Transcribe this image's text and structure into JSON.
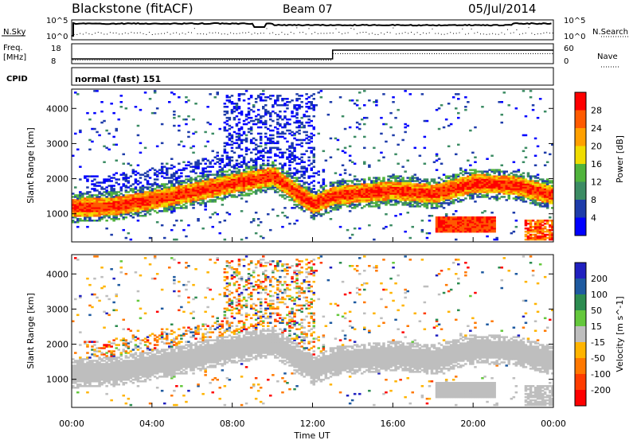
{
  "header": {
    "station": "Blackstone (fitACF)",
    "beam": "Beam 07",
    "date": "05/Jul/2014"
  },
  "panels": {
    "nsky_label": "N.Sky",
    "nsky_ticks": [
      "10^5",
      "10^0"
    ],
    "nsearch_label": "N.Search",
    "nsearch_ticks": [
      "10^5",
      "10^0"
    ],
    "freq_label_1": "Freq.",
    "freq_label_2": "[MHz]",
    "freq_ticks": [
      "18",
      "8"
    ],
    "nave_label": "Nave",
    "nave_ticks": [
      "60",
      "0"
    ],
    "cpid_label": "CPID",
    "cpid_value": "normal (fast) 151"
  },
  "colors": {
    "power_scale": [
      "#0000ff",
      "#1e3caa",
      "#3c8c64",
      "#50b43c",
      "#f0dc00",
      "#ffa000",
      "#ff5a00",
      "#ff0000"
    ],
    "velocity_scale": [
      "#2020c0",
      "#1e5aa0",
      "#2c8c50",
      "#64c83c",
      "#bebebe",
      "#ffb400",
      "#ff7800",
      "#ff3c00",
      "#ff0000"
    ],
    "ground_scatter": "#bebebe"
  },
  "chart_data": [
    {
      "type": "heatmap",
      "title": "Power",
      "xlabel": "Time UT",
      "ylabel": "Slant Range [km]",
      "ylim": [
        200,
        4550
      ],
      "xlim": [
        0,
        24
      ],
      "y_ticks": [
        "1000",
        "2000",
        "3000",
        "4000"
      ],
      "x_ticks": [
        "00:00",
        "04:00",
        "08:00",
        "12:00",
        "16:00",
        "20:00",
        "00:00"
      ],
      "colorbar_label": "Power [dB]",
      "colorbar_ticks": [
        "4",
        "8",
        "12",
        "16",
        "20",
        "24",
        "28"
      ],
      "echo_band_center_km": [
        [
          0,
          1150
        ],
        [
          2,
          1200
        ],
        [
          4,
          1380
        ],
        [
          6,
          1600
        ],
        [
          8,
          1850
        ],
        [
          10,
          2050
        ],
        [
          12,
          1250
        ],
        [
          13,
          1500
        ],
        [
          16,
          1650
        ],
        [
          18,
          1550
        ],
        [
          20,
          1850
        ],
        [
          22,
          1800
        ],
        [
          24,
          1500
        ]
      ]
    },
    {
      "type": "heatmap",
      "title": "Velocity",
      "xlabel": "Time UT",
      "ylabel": "Slant Range [km]",
      "ylim": [
        200,
        4550
      ],
      "xlim": [
        0,
        24
      ],
      "y_ticks": [
        "1000",
        "2000",
        "3000",
        "4000"
      ],
      "x_ticks": [
        "00:00",
        "04:00",
        "08:00",
        "12:00",
        "16:00",
        "20:00",
        "00:00"
      ],
      "colorbar_label": "Velocity [m s^-1]",
      "colorbar_ticks": [
        "200",
        "100",
        "50",
        "15",
        "-15",
        "-50",
        "-100",
        "-200"
      ]
    }
  ]
}
